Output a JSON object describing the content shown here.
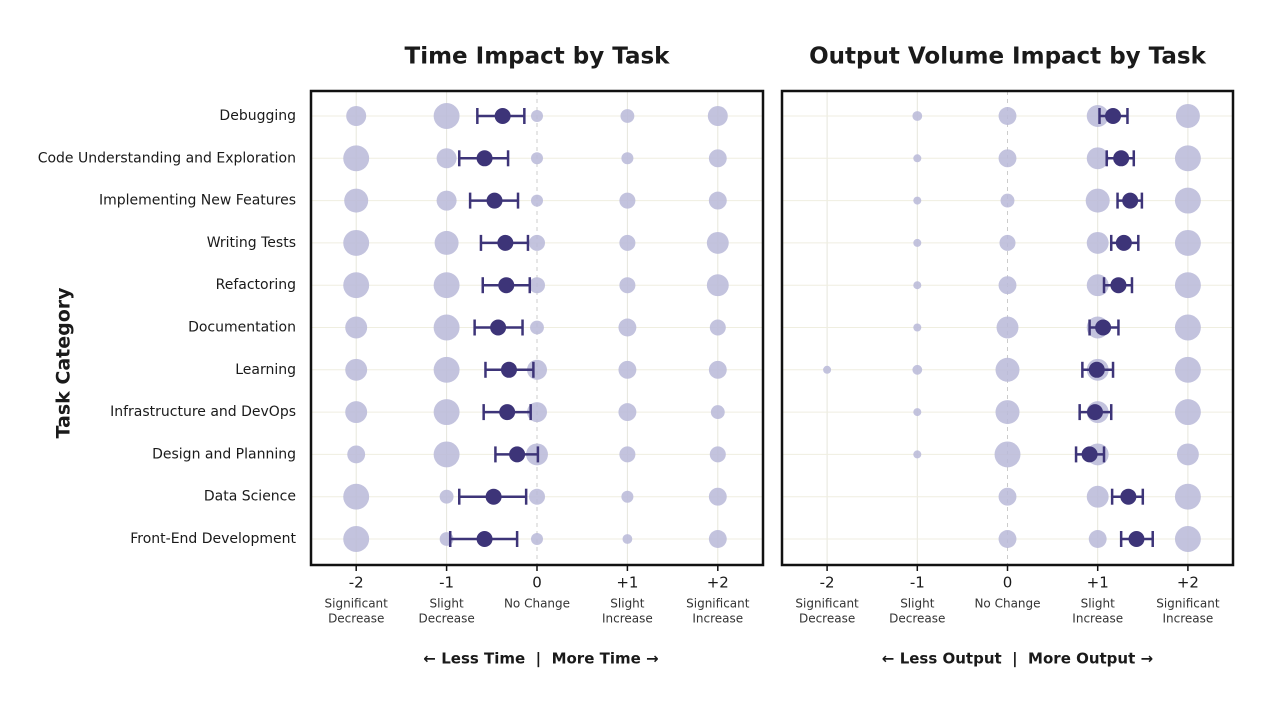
{
  "chart_data": [
    {
      "type": "dot_errorbar",
      "title": "Time Impact by Task",
      "ylabel": "Task Category",
      "xlabel": "← Less Time  |  More Time →",
      "categories": [
        "Debugging",
        "Code Understanding and Exploration",
        "Implementing New Features",
        "Writing Tests",
        "Refactoring",
        "Documentation",
        "Learning",
        "Infrastructure and DevOps",
        "Design and Planning",
        "Data Science",
        "Front-End Development"
      ],
      "xlim": [
        -2.5,
        2.5
      ],
      "xticks": [
        -2,
        -1,
        0,
        {
          "value": 1,
          "label": "+1"
        },
        {
          "value": 2,
          "label": "+2"
        }
      ],
      "xtick_descriptions": [
        [
          "Significant",
          "Decrease"
        ],
        [
          "Slight",
          "Decrease"
        ],
        [
          "No Change"
        ],
        [
          "Slight",
          "Increase"
        ],
        [
          "Significant",
          "Increase"
        ]
      ],
      "values": [
        -0.38,
        -0.58,
        -0.47,
        -0.35,
        -0.34,
        -0.43,
        -0.31,
        -0.33,
        -0.22,
        -0.48,
        -0.58
      ],
      "ci_low": [
        -0.66,
        -0.86,
        -0.74,
        -0.62,
        -0.6,
        -0.69,
        -0.57,
        -0.59,
        -0.46,
        -0.86,
        -0.96
      ],
      "ci_high": [
        -0.14,
        -0.32,
        -0.21,
        -0.1,
        -0.08,
        -0.16,
        -0.04,
        -0.07,
        0.01,
        -0.12,
        -0.22
      ],
      "bubble_sizes": [
        [
          25,
          42,
          9,
          12,
          25
        ],
        [
          42,
          25,
          9,
          9,
          20
        ],
        [
          36,
          25,
          9,
          16,
          20
        ],
        [
          42,
          36,
          16,
          16,
          30
        ],
        [
          42,
          42,
          16,
          16,
          30
        ],
        [
          30,
          42,
          12,
          20,
          16
        ],
        [
          30,
          42,
          25,
          20,
          20
        ],
        [
          30,
          42,
          25,
          20,
          12
        ],
        [
          20,
          42,
          30,
          16,
          16
        ],
        [
          42,
          12,
          16,
          9,
          20
        ],
        [
          42,
          12,
          9,
          6,
          20
        ]
      ],
      "bubble_color": "#b9b9d8",
      "color": "#3d3478",
      "grid": true
    },
    {
      "type": "dot_errorbar",
      "title": "Output Volume Impact by Task",
      "xlabel": "← Less Output  |  More Output →",
      "xlim": [
        -2.5,
        2.5
      ],
      "xticks": [
        -2,
        -1,
        0,
        {
          "value": 1,
          "label": "+1"
        },
        {
          "value": 2,
          "label": "+2"
        }
      ],
      "xtick_descriptions": [
        [
          "Significant",
          "Decrease"
        ],
        [
          "Slight",
          "Decrease"
        ],
        [
          "No Change"
        ],
        [
          "Slight",
          "Increase"
        ],
        [
          "Significant",
          "Increase"
        ]
      ],
      "values": [
        1.17,
        1.26,
        1.36,
        1.29,
        1.23,
        1.06,
        0.99,
        0.97,
        0.91,
        1.34,
        1.43
      ],
      "ci_low": [
        1.02,
        1.1,
        1.22,
        1.15,
        1.07,
        0.91,
        0.83,
        0.8,
        0.76,
        1.16,
        1.26
      ],
      "ci_high": [
        1.33,
        1.4,
        1.49,
        1.45,
        1.38,
        1.23,
        1.17,
        1.15,
        1.07,
        1.5,
        1.61
      ],
      "bubble_sizes": [
        [
          0,
          6,
          20,
          30,
          36
        ],
        [
          0,
          4,
          20,
          30,
          42
        ],
        [
          0,
          4,
          12,
          36,
          42
        ],
        [
          0,
          4,
          16,
          30,
          42
        ],
        [
          0,
          4,
          20,
          30,
          42
        ],
        [
          0,
          4,
          30,
          30,
          42
        ],
        [
          4,
          6,
          36,
          30,
          42
        ],
        [
          0,
          4,
          36,
          30,
          42
        ],
        [
          0,
          4,
          42,
          30,
          30
        ],
        [
          0,
          0,
          20,
          30,
          42
        ],
        [
          0,
          0,
          20,
          20,
          42
        ]
      ],
      "bubble_color": "#b9b9d8",
      "color": "#3d3478",
      "grid": true
    }
  ]
}
